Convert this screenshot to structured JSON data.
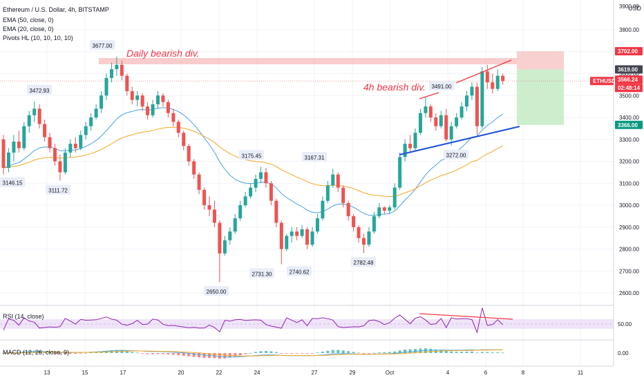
{
  "header": {
    "title": "Ethereum / U.S. Dollar, 4h, BITSTAMP",
    "indicators": [
      "EMA (50, close, 0)",
      "EMA (20, close, 0)",
      "Pivots HL (10, 10, 10, 10)"
    ],
    "currency": "USD"
  },
  "annotations": {
    "daily_div": "Daily bearish div.",
    "h4_div": "4h bearish div."
  },
  "price_scale": {
    "ticks": [
      "2600.00",
      "2700.00",
      "2800.00",
      "2900.00",
      "3000.00",
      "3100.00",
      "3200.00",
      "3300.00",
      "3400.00",
      "3500.00",
      "3600.00",
      "3700.00",
      "3800.00"
    ],
    "top_partial": "3900.00"
  },
  "price_badges": {
    "target_high": "3702.00",
    "entry": "3619.00",
    "symbol": "ETHUSD",
    "last": "3566.24",
    "countdown": "02:48:14",
    "stop": "3366.00"
  },
  "pivot_labels": [
    "3146.15",
    "3472.93",
    "3111.72",
    "3677.00",
    "3175.45",
    "2650.00",
    "2731.30",
    "3167.31",
    "2740.62",
    "2782.48",
    "3491.00",
    "3272.00"
  ],
  "x_axis": {
    "labels": [
      "13",
      "15",
      "17",
      "20",
      "22",
      "24",
      "27",
      "29",
      "Oct",
      "4",
      "6",
      "8",
      "11"
    ]
  },
  "rsi": {
    "label": "RSI (14, close)",
    "tick": "50.00"
  },
  "macd": {
    "label": "MACD (12, 26, close, 9)",
    "tick": "0.00"
  },
  "colors": {
    "up": "#26a69a",
    "down": "#ef5350",
    "ema50": "#f5a623",
    "ema20": "#4aa3df",
    "rsi": "#8e24aa",
    "trend_blue": "#1e4fd8",
    "trend_red": "#f23645"
  },
  "chart_data": {
    "type": "candlestick",
    "symbol": "ETHUSD",
    "interval": "4h",
    "exchange": "BITSTAMP",
    "ylim": [
      2560,
      3920
    ],
    "pivots": [
      {
        "x": "12",
        "label": "3146.15",
        "value": 3146.15,
        "kind": "low"
      },
      {
        "x": "13",
        "label": "3472.93",
        "value": 3472.93,
        "kind": "high"
      },
      {
        "x": "14",
        "label": "3111.72",
        "value": 3111.72,
        "kind": "low"
      },
      {
        "x": "16",
        "label": "3677.00",
        "value": 3677.0,
        "kind": "high"
      },
      {
        "x": "23",
        "label": "3175.45",
        "value": 3175.45,
        "kind": "high"
      },
      {
        "x": "21",
        "label": "2650.00",
        "value": 2650.0,
        "kind": "low"
      },
      {
        "x": "23",
        "label": "2731.30",
        "value": 2731.3,
        "kind": "low"
      },
      {
        "x": "26",
        "label": "3167.31",
        "value": 3167.31,
        "kind": "high"
      },
      {
        "x": "26",
        "label": "2740.62",
        "value": 2740.62,
        "kind": "low"
      },
      {
        "x": "29",
        "label": "2782.48",
        "value": 2782.48,
        "kind": "low"
      },
      {
        "x": "3",
        "label": "3491.00",
        "value": 3491.0,
        "kind": "high"
      },
      {
        "x": "4",
        "label": "3272.00",
        "value": 3272.0,
        "kind": "low"
      }
    ],
    "position": {
      "target": 3702.0,
      "entry": 3619.0,
      "stop": 3366.0,
      "last": 3566.24
    },
    "resistance_zone": [
      3619,
      3655
    ],
    "ohlc": [
      [
        3300,
        3320,
        3140,
        3170
      ],
      [
        3170,
        3260,
        3150,
        3240
      ],
      [
        3240,
        3320,
        3200,
        3290
      ],
      [
        3290,
        3340,
        3240,
        3260
      ],
      [
        3260,
        3380,
        3250,
        3360
      ],
      [
        3360,
        3430,
        3330,
        3410
      ],
      [
        3410,
        3473,
        3380,
        3440
      ],
      [
        3440,
        3460,
        3350,
        3370
      ],
      [
        3370,
        3390,
        3290,
        3310
      ],
      [
        3310,
        3330,
        3240,
        3260
      ],
      [
        3260,
        3280,
        3180,
        3200
      ],
      [
        3200,
        3230,
        3112,
        3150
      ],
      [
        3150,
        3260,
        3140,
        3240
      ],
      [
        3240,
        3300,
        3220,
        3280
      ],
      [
        3280,
        3310,
        3240,
        3260
      ],
      [
        3260,
        3340,
        3250,
        3320
      ],
      [
        3320,
        3380,
        3300,
        3360
      ],
      [
        3360,
        3420,
        3340,
        3400
      ],
      [
        3400,
        3460,
        3390,
        3440
      ],
      [
        3440,
        3520,
        3420,
        3500
      ],
      [
        3500,
        3600,
        3480,
        3580
      ],
      [
        3580,
        3650,
        3560,
        3620
      ],
      [
        3620,
        3677,
        3590,
        3640
      ],
      [
        3640,
        3660,
        3570,
        3590
      ],
      [
        3590,
        3600,
        3500,
        3520
      ],
      [
        3520,
        3540,
        3460,
        3480
      ],
      [
        3480,
        3520,
        3450,
        3500
      ],
      [
        3500,
        3510,
        3430,
        3450
      ],
      [
        3450,
        3470,
        3390,
        3410
      ],
      [
        3410,
        3480,
        3400,
        3460
      ],
      [
        3460,
        3520,
        3440,
        3500
      ],
      [
        3500,
        3510,
        3450,
        3470
      ],
      [
        3470,
        3480,
        3400,
        3420
      ],
      [
        3420,
        3440,
        3360,
        3380
      ],
      [
        3380,
        3390,
        3310,
        3330
      ],
      [
        3330,
        3340,
        3250,
        3270
      ],
      [
        3270,
        3280,
        3180,
        3200
      ],
      [
        3200,
        3210,
        3120,
        3140
      ],
      [
        3140,
        3150,
        3050,
        3070
      ],
      [
        3070,
        3080,
        2980,
        3000
      ],
      [
        3000,
        3040,
        2950,
        2980
      ],
      [
        2980,
        3020,
        2900,
        2920
      ],
      [
        2920,
        2930,
        2650,
        2780
      ],
      [
        2780,
        2860,
        2770,
        2840
      ],
      [
        2840,
        2900,
        2820,
        2880
      ],
      [
        2880,
        2960,
        2870,
        2940
      ],
      [
        2940,
        3020,
        2930,
        3000
      ],
      [
        3000,
        3060,
        2990,
        3040
      ],
      [
        3040,
        3100,
        3030,
        3080
      ],
      [
        3080,
        3140,
        3060,
        3120
      ],
      [
        3120,
        3175,
        3100,
        3150
      ],
      [
        3150,
        3170,
        3080,
        3100
      ],
      [
        3100,
        3110,
        3000,
        3020
      ],
      [
        3020,
        3030,
        2900,
        2920
      ],
      [
        2920,
        2930,
        2731,
        2800
      ],
      [
        2800,
        2870,
        2790,
        2860
      ],
      [
        2860,
        2900,
        2830,
        2880
      ],
      [
        2880,
        2900,
        2840,
        2860
      ],
      [
        2860,
        2910,
        2850,
        2890
      ],
      [
        2890,
        2900,
        2800,
        2820
      ],
      [
        2820,
        2900,
        2810,
        2880
      ],
      [
        2880,
        2960,
        2870,
        2940
      ],
      [
        2940,
        3040,
        2930,
        3020
      ],
      [
        3020,
        3110,
        3010,
        3090
      ],
      [
        3090,
        3167,
        3080,
        3140
      ],
      [
        3140,
        3150,
        3060,
        3080
      ],
      [
        3080,
        3090,
        2990,
        3010
      ],
      [
        3010,
        3020,
        2930,
        2950
      ],
      [
        2950,
        2960,
        2880,
        2900
      ],
      [
        2900,
        2910,
        2830,
        2850
      ],
      [
        2850,
        2870,
        2782,
        2820
      ],
      [
        2820,
        2900,
        2810,
        2880
      ],
      [
        2880,
        2970,
        2870,
        2950
      ],
      [
        2950,
        3010,
        2940,
        2990
      ],
      [
        2990,
        2995,
        2960,
        2975
      ],
      [
        2975,
        3000,
        2960,
        2990
      ],
      [
        2990,
        3100,
        2980,
        3080
      ],
      [
        3080,
        3240,
        3070,
        3220
      ],
      [
        3220,
        3300,
        3200,
        3280
      ],
      [
        3280,
        3320,
        3240,
        3260
      ],
      [
        3260,
        3350,
        3250,
        3330
      ],
      [
        3330,
        3440,
        3320,
        3420
      ],
      [
        3420,
        3491,
        3400,
        3450
      ],
      [
        3450,
        3460,
        3380,
        3400
      ],
      [
        3400,
        3420,
        3340,
        3360
      ],
      [
        3360,
        3430,
        3350,
        3410
      ],
      [
        3410,
        3440,
        3290,
        3300
      ],
      [
        3300,
        3380,
        3272,
        3360
      ],
      [
        3360,
        3420,
        3350,
        3400
      ],
      [
        3400,
        3470,
        3390,
        3450
      ],
      [
        3450,
        3520,
        3430,
        3500
      ],
      [
        3500,
        3560,
        3480,
        3540
      ],
      [
        3540,
        3560,
        3320,
        3360
      ],
      [
        3360,
        3630,
        3350,
        3610
      ],
      [
        3610,
        3640,
        3530,
        3560
      ],
      [
        3560,
        3600,
        3510,
        3530
      ],
      [
        3530,
        3619,
        3520,
        3590
      ],
      [
        3590,
        3600,
        3550,
        3566
      ]
    ]
  }
}
